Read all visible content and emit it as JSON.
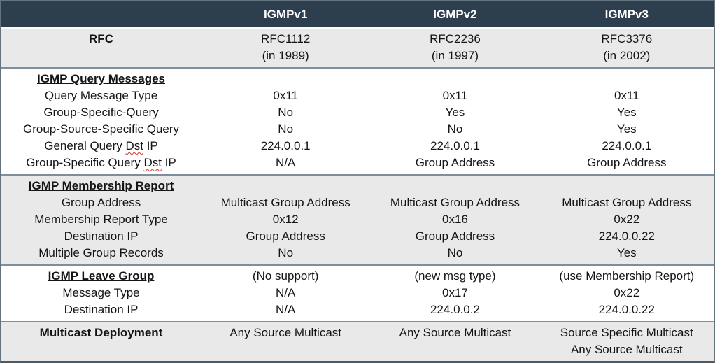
{
  "colors": {
    "header_bg": "#2d3e4e",
    "header_text": "#ffffff",
    "band_gray": "#e9e9e9",
    "band_white": "#ffffff",
    "outer_border": "#64747f",
    "section_separator": "#7e8e9c",
    "body_text": "#141414",
    "spellcheck_underline": "#d4382e"
  },
  "header": {
    "col0": "",
    "col1": "IGMPv1",
    "col2": "IGMPv2",
    "col3": "IGMPv3"
  },
  "rfc": {
    "label": "RFC",
    "values": [
      "RFC1112\n(in 1989)",
      "RFC2236\n(in 1997)",
      "RFC3376\n(in 2002)"
    ]
  },
  "query": {
    "heading": "IGMP Query Messages",
    "rows": [
      {
        "label": "Query Message Type",
        "values": [
          "0x11",
          "0x11",
          "0x11"
        ]
      },
      {
        "label": "Group-Specific-Query",
        "values": [
          "No",
          "Yes",
          "Yes"
        ]
      },
      {
        "label": "Group-Source-Specific Query",
        "values": [
          "No",
          "No",
          "Yes"
        ]
      },
      {
        "label_parts": [
          "General Query ",
          "Dst",
          " IP"
        ],
        "values": [
          "224.0.0.1",
          "224.0.0.1",
          "224.0.0.1"
        ]
      },
      {
        "label_parts": [
          "Group-Specific Query ",
          "Dst",
          " IP"
        ],
        "values": [
          "N/A",
          "Group Address",
          "Group Address"
        ]
      }
    ]
  },
  "membership": {
    "heading": "IGMP Membership Report",
    "rows": [
      {
        "label": "Group Address",
        "values": [
          "Multicast Group Address",
          "Multicast Group Address",
          "Multicast Group Address"
        ]
      },
      {
        "label": "Membership Report Type",
        "values": [
          "0x12",
          "0x16",
          "0x22"
        ]
      },
      {
        "label": "Destination IP",
        "values": [
          "Group Address",
          "Group Address",
          "224.0.0.22"
        ]
      },
      {
        "label": "Multiple Group Records",
        "values": [
          "No",
          "No",
          "Yes"
        ]
      }
    ]
  },
  "leave": {
    "heading": "IGMP Leave Group",
    "heading_values": [
      "(No support)",
      "(new msg type)",
      "(use Membership Report)"
    ],
    "rows": [
      {
        "label": "Message Type",
        "values": [
          "N/A",
          "0x17",
          "0x22"
        ]
      },
      {
        "label": "Destination IP",
        "values": [
          "N/A",
          "224.0.0.2",
          "224.0.0.22"
        ]
      }
    ]
  },
  "deployment": {
    "label": "Multicast Deployment",
    "values": [
      "Any Source Multicast",
      "Any Source Multicast",
      "Source Specific Multicast\nAny Source Multicast"
    ]
  }
}
